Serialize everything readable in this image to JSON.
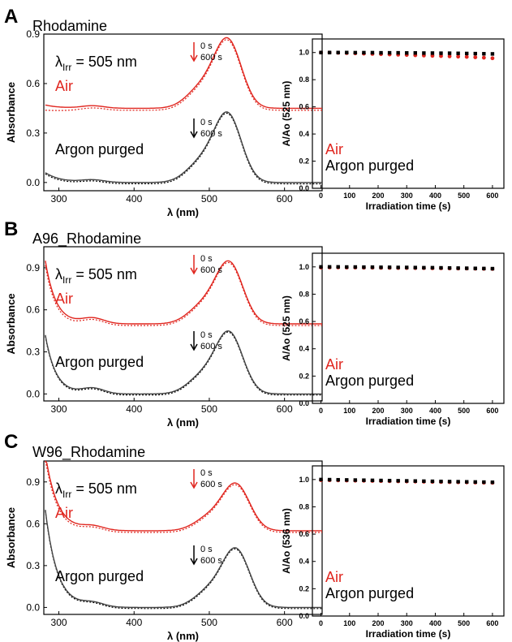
{
  "colors": {
    "air": "#e0261f",
    "argon": "#000000",
    "axis": "#000000",
    "spectrum": "#444444"
  },
  "panels": [
    {
      "letter": "A",
      "title": "Rhodamine",
      "lambda_prefix": "λ",
      "lambda_sub": "Irr",
      "lambda_suffix": " = 505 nm",
      "air_label": "Air",
      "argon_label": "Argon purged",
      "t0_label": "0 s",
      "t600_label": "600 s",
      "spectrum": {
        "type": "line",
        "xlabel": "λ (nm)",
        "ylabel": "Absorbance",
        "xlim": [
          280,
          650
        ],
        "ylim": [
          -0.05,
          0.9
        ],
        "xticks": [
          300,
          400,
          500,
          600
        ],
        "yticks": [
          0.0,
          0.3,
          0.6,
          0.9
        ],
        "ytick_labels": [
          "0.0",
          "0.3",
          "0.6",
          "0.9"
        ]
      },
      "chart_data": {
        "type": "scatter",
        "xlabel": "Irradiation time (s)",
        "ylabel": "A/Ao  (525 nm)",
        "xlim": [
          -30,
          640
        ],
        "ylim": [
          0,
          1.1
        ],
        "xticks": [
          0,
          100,
          200,
          300,
          400,
          500,
          600
        ],
        "yticks": [
          0.0,
          0.2,
          0.4,
          0.6,
          0.8,
          1.0
        ],
        "ytick_labels": [
          "0.0",
          "0.2",
          "0.4",
          "0.6",
          "0.8",
          "1.0"
        ],
        "x": [
          0,
          30,
          60,
          90,
          120,
          150,
          180,
          210,
          240,
          270,
          300,
          330,
          360,
          390,
          420,
          450,
          480,
          510,
          540,
          570,
          600
        ],
        "series": [
          {
            "name": "Air",
            "values": [
              1.0,
              1.0,
              0.998,
              0.996,
              0.994,
              0.992,
              0.99,
              0.988,
              0.986,
              0.984,
              0.982,
              0.98,
              0.978,
              0.976,
              0.974,
              0.972,
              0.97,
              0.968,
              0.965,
              0.962,
              0.958
            ]
          },
          {
            "name": "Argon purged",
            "values": [
              1.0,
              1.0,
              1.0,
              1.0,
              0.999,
              0.999,
              0.999,
              0.998,
              0.998,
              0.998,
              0.997,
              0.997,
              0.996,
              0.996,
              0.995,
              0.995,
              0.994,
              0.993,
              0.992,
              0.991,
              0.99
            ]
          }
        ]
      }
    },
    {
      "letter": "B",
      "title": "A96_Rhodamine",
      "lambda_prefix": "λ",
      "lambda_sub": "Irr",
      "lambda_suffix": " = 505 nm",
      "air_label": "Air",
      "argon_label": "Argon purged",
      "t0_label": "0 s",
      "t600_label": "600 s",
      "spectrum": {
        "type": "line",
        "xlabel": "λ (nm)",
        "ylabel": "Absorbance",
        "xlim": [
          280,
          650
        ],
        "ylim": [
          -0.05,
          1.05
        ],
        "xticks": [
          300,
          400,
          500,
          600
        ],
        "yticks": [
          0.0,
          0.3,
          0.6,
          0.9
        ],
        "ytick_labels": [
          "0.0",
          "0.3",
          "0.6",
          "0.9"
        ]
      },
      "chart_data": {
        "type": "scatter",
        "xlabel": "Irradiation time (s)",
        "ylabel": "A/Ao  (525 nm)",
        "xlim": [
          -30,
          640
        ],
        "ylim": [
          0,
          1.1
        ],
        "xticks": [
          0,
          100,
          200,
          300,
          400,
          500,
          600
        ],
        "yticks": [
          0.0,
          0.2,
          0.4,
          0.6,
          0.8,
          1.0
        ],
        "ytick_labels": [
          "0.0",
          "0.2",
          "0.4",
          "0.6",
          "0.8",
          "1.0"
        ],
        "x": [
          0,
          30,
          60,
          90,
          120,
          150,
          180,
          210,
          240,
          270,
          300,
          330,
          360,
          390,
          420,
          450,
          480,
          510,
          540,
          570,
          600
        ],
        "series": [
          {
            "name": "Air",
            "values": [
              0.995,
              0.996,
              0.996,
              0.995,
              0.995,
              0.994,
              0.994,
              0.993,
              0.993,
              0.992,
              0.992,
              0.991,
              0.991,
              0.99,
              0.99,
              0.989,
              0.988,
              0.988,
              0.987,
              0.986,
              0.985
            ]
          },
          {
            "name": "Argon purged",
            "values": [
              1.0,
              1.0,
              1.0,
              0.999,
              0.999,
              0.998,
              0.998,
              0.997,
              0.997,
              0.996,
              0.996,
              0.995,
              0.994,
              0.994,
              0.993,
              0.992,
              0.991,
              0.99,
              0.989,
              0.988,
              0.987
            ]
          }
        ]
      }
    },
    {
      "letter": "C",
      "title": "W96_Rhodamine",
      "lambda_prefix": "λ",
      "lambda_sub": "Irr",
      "lambda_suffix": " = 505 nm",
      "air_label": "Air",
      "argon_label": "Argon purged",
      "t0_label": "0 s",
      "t600_label": "600 s",
      "spectrum": {
        "type": "line",
        "xlabel": "λ (nm)",
        "ylabel": "Absorbance",
        "xlim": [
          280,
          650
        ],
        "ylim": [
          -0.05,
          1.05
        ],
        "xticks": [
          300,
          400,
          500,
          600
        ],
        "yticks": [
          0.0,
          0.3,
          0.6,
          0.9
        ],
        "ytick_labels": [
          "0.0",
          "0.3",
          "0.6",
          "0.9"
        ]
      },
      "chart_data": {
        "type": "scatter",
        "xlabel": "Irradiation time (s)",
        "ylabel": "A/Ao  (536 nm)",
        "xlim": [
          -30,
          640
        ],
        "ylim": [
          0,
          1.1
        ],
        "xticks": [
          0,
          100,
          200,
          300,
          400,
          500,
          600
        ],
        "yticks": [
          0.0,
          0.2,
          0.4,
          0.6,
          0.8,
          1.0
        ],
        "ytick_labels": [
          "0.0",
          "0.2",
          "0.4",
          "0.6",
          "0.8",
          "1.0"
        ],
        "x": [
          0,
          30,
          60,
          90,
          120,
          150,
          180,
          210,
          240,
          270,
          300,
          330,
          360,
          390,
          420,
          450,
          480,
          510,
          540,
          570,
          600
        ],
        "series": [
          {
            "name": "Air",
            "values": [
              0.996,
              0.995,
              0.994,
              0.993,
              0.992,
              0.991,
              0.99,
              0.989,
              0.988,
              0.987,
              0.986,
              0.985,
              0.984,
              0.983,
              0.982,
              0.981,
              0.98,
              0.979,
              0.978,
              0.977,
              0.976
            ]
          },
          {
            "name": "Argon purged",
            "values": [
              1.0,
              0.999,
              0.998,
              0.997,
              0.996,
              0.995,
              0.994,
              0.993,
              0.992,
              0.991,
              0.99,
              0.989,
              0.988,
              0.987,
              0.986,
              0.985,
              0.984,
              0.983,
              0.982,
              0.981,
              0.98
            ]
          }
        ]
      }
    }
  ]
}
